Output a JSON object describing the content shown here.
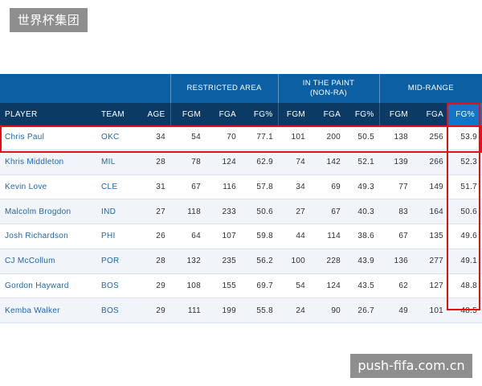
{
  "watermarks": {
    "top_left": "世界杯集团",
    "bottom_right": "push-fifa.com.cn"
  },
  "groups": {
    "restricted_area": "RESTRICTED AREA",
    "paint_line1": "IN THE PAINT",
    "paint_line2": "(NON-RA)",
    "mid_range": "MID-RANGE"
  },
  "columns": [
    "PLAYER",
    "TEAM",
    "AGE",
    "FGM",
    "FGA",
    "FG%",
    "FGM",
    "FGA",
    "FG%",
    "FGM",
    "FGA",
    "FG%"
  ],
  "rows": [
    {
      "player": "Chris Paul",
      "team": "OKC",
      "age": "34",
      "ra_fgm": "54",
      "ra_fga": "70",
      "ra_pct": "77.1",
      "paint_fgm": "101",
      "paint_fga": "200",
      "paint_pct": "50.5",
      "mid_fgm": "138",
      "mid_fga": "256",
      "mid_pct": "53.9"
    },
    {
      "player": "Khris Middleton",
      "team": "MIL",
      "age": "28",
      "ra_fgm": "78",
      "ra_fga": "124",
      "ra_pct": "62.9",
      "paint_fgm": "74",
      "paint_fga": "142",
      "paint_pct": "52.1",
      "mid_fgm": "139",
      "mid_fga": "266",
      "mid_pct": "52.3"
    },
    {
      "player": "Kevin Love",
      "team": "CLE",
      "age": "31",
      "ra_fgm": "67",
      "ra_fga": "116",
      "ra_pct": "57.8",
      "paint_fgm": "34",
      "paint_fga": "69",
      "paint_pct": "49.3",
      "mid_fgm": "77",
      "mid_fga": "149",
      "mid_pct": "51.7"
    },
    {
      "player": "Malcolm Brogdon",
      "team": "IND",
      "age": "27",
      "ra_fgm": "118",
      "ra_fga": "233",
      "ra_pct": "50.6",
      "paint_fgm": "27",
      "paint_fga": "67",
      "paint_pct": "40.3",
      "mid_fgm": "83",
      "mid_fga": "164",
      "mid_pct": "50.6"
    },
    {
      "player": "Josh Richardson",
      "team": "PHI",
      "age": "26",
      "ra_fgm": "64",
      "ra_fga": "107",
      "ra_pct": "59.8",
      "paint_fgm": "44",
      "paint_fga": "114",
      "paint_pct": "38.6",
      "mid_fgm": "67",
      "mid_fga": "135",
      "mid_pct": "49.6"
    },
    {
      "player": "CJ McCollum",
      "team": "POR",
      "age": "28",
      "ra_fgm": "132",
      "ra_fga": "235",
      "ra_pct": "56.2",
      "paint_fgm": "100",
      "paint_fga": "228",
      "paint_pct": "43.9",
      "mid_fgm": "136",
      "mid_fga": "277",
      "mid_pct": "49.1"
    },
    {
      "player": "Gordon Hayward",
      "team": "BOS",
      "age": "29",
      "ra_fgm": "108",
      "ra_fga": "155",
      "ra_pct": "69.7",
      "paint_fgm": "54",
      "paint_fga": "124",
      "paint_pct": "43.5",
      "mid_fgm": "62",
      "mid_fga": "127",
      "mid_pct": "48.8"
    },
    {
      "player": "Kemba Walker",
      "team": "BOS",
      "age": "29",
      "ra_fgm": "111",
      "ra_fga": "199",
      "ra_pct": "55.8",
      "paint_fgm": "24",
      "paint_fga": "90",
      "paint_pct": "26.7",
      "mid_fgm": "49",
      "mid_fga": "101",
      "mid_pct": "48.5"
    }
  ],
  "colors": {
    "header_blue": "#0b5fa3",
    "header_navy": "#0b3a64",
    "highlight_blue": "#1275c8",
    "annotation_red": "#e1111a",
    "link_blue": "#1c67ad"
  }
}
